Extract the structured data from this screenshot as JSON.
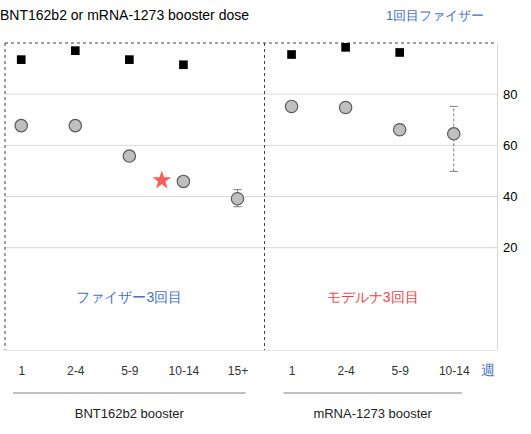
{
  "chart_data": {
    "type": "scatter",
    "title": "BNT162b2 or mRNA-1273 booster dose",
    "subtitle": {
      "text": "1回目ファイザー",
      "color": "#4472c4"
    },
    "x_label": {
      "text": "週",
      "color": "#4472c4"
    },
    "categories": [
      "1",
      "2-4",
      "5-9",
      "10-14",
      "15+",
      "1",
      "2-4",
      "5-9",
      "10-14"
    ],
    "series": [
      {
        "color": "#000000",
        "marker": "square",
        "values": [
          93.5,
          97,
          93.5,
          91.5,
          null,
          95.5,
          98.3,
          96.3,
          null
        ]
      },
      {
        "color": "#bfbfbf",
        "marker": "circle",
        "values": [
          67.7,
          67.7,
          55.8,
          45.9,
          39.1,
          75.2,
          74.8,
          66.1,
          64.5
        ],
        "error_minus": [
          null,
          null,
          null,
          null,
          3.1,
          null,
          null,
          null,
          14.7
        ],
        "error_plus": [
          null,
          null,
          null,
          null,
          3.6,
          null,
          null,
          null,
          10.7
        ]
      },
      {
        "color": "#ff5b5b",
        "marker": "star",
        "x": [
          2.6
        ],
        "values": [
          46.3
        ]
      }
    ],
    "ylim": [
      -20,
      100
    ],
    "yticks": [
      20,
      40,
      60,
      80
    ],
    "grid": true,
    "groups": [
      {
        "label": "BNT162b2 booster",
        "title": "ファイザー3回目",
        "color": "#4472c4",
        "start": 0,
        "end": 4
      },
      {
        "label": "mRNA-1273 booster",
        "title": "モデルナ3回目",
        "color": "#e8474a",
        "start": 5,
        "end": 8
      }
    ]
  }
}
